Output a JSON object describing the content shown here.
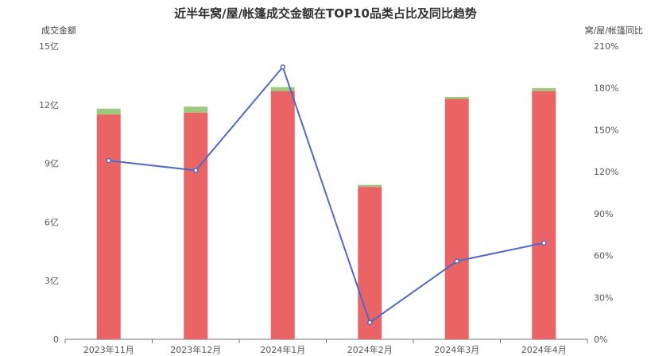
{
  "chart_data": {
    "type": "bar",
    "title": "近半年窝/屋/帐篷成交金额在TOP10品类占比及同比趋势",
    "ylabel": "成交金额",
    "y2label": "窝/屋/帐篷同比",
    "categories": [
      "2023年11月",
      "2023年12月",
      "2024年1月",
      "2024年2月",
      "2024年3月",
      "2024年4月"
    ],
    "ylim": [
      0,
      15
    ],
    "y_ticks": [
      "0",
      "3亿",
      "6亿",
      "9亿",
      "12亿",
      "15亿"
    ],
    "y2lim": [
      0,
      210
    ],
    "y2_ticks": [
      "0%",
      "30%",
      "60%",
      "90%",
      "120%",
      "150%",
      "180%",
      "210%"
    ],
    "series": [
      {
        "type": "bar",
        "stack": "total",
        "color": "#eb6465",
        "values": [
          11.5,
          11.6,
          12.7,
          7.8,
          12.3,
          12.7
        ]
      },
      {
        "type": "bar",
        "stack": "total",
        "color": "#9dc87e",
        "values": [
          0.3,
          0.3,
          0.2,
          0.1,
          0.1,
          0.15
        ]
      },
      {
        "type": "line",
        "axis": "right",
        "color": "#4f6ac4",
        "values": [
          128,
          121,
          195,
          12,
          56,
          69
        ]
      }
    ],
    "grid": false
  }
}
